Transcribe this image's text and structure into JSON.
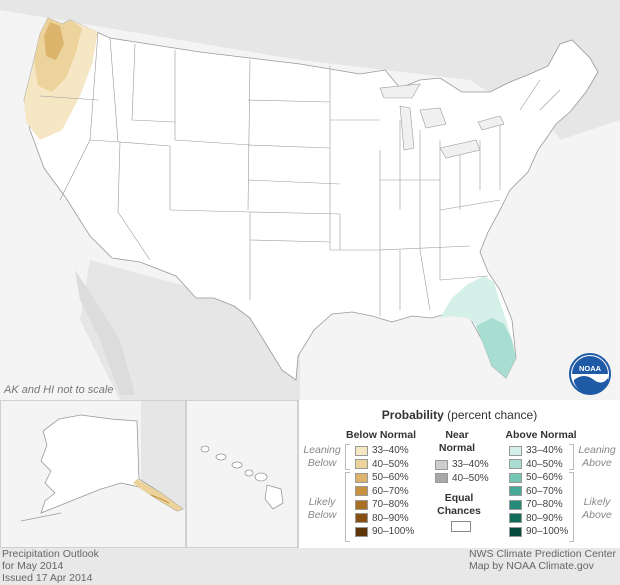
{
  "map": {
    "scale_note": "AK and HI not to scale"
  },
  "legend": {
    "title_bold": "Probability",
    "title_rest": "(percent chance)",
    "below_head": "Below Normal",
    "near_head": "Near Normal",
    "above_head": "Above Normal",
    "leaning_below": "Leaning Below",
    "likely_below": "Likely Below",
    "leaning_above": "Leaning Above",
    "likely_above": "Likely Above",
    "equal_head": "Equal Chances",
    "below_rows": [
      {
        "label": "33–40%",
        "color": "#f5e6c4"
      },
      {
        "label": "40–50%",
        "color": "#ecd39b"
      },
      {
        "label": "50–60%",
        "color": "#dcb46b"
      },
      {
        "label": "60–70%",
        "color": "#c99240"
      },
      {
        "label": "70–80%",
        "color": "#a96f22"
      },
      {
        "label": "80–90%",
        "color": "#855012"
      },
      {
        "label": "90–100%",
        "color": "#5c3508"
      }
    ],
    "near_rows": [
      {
        "label": "33–40%",
        "color": "#cdcdcd"
      },
      {
        "label": "40–50%",
        "color": "#a8a8a8"
      }
    ],
    "above_rows": [
      {
        "label": "33–40%",
        "color": "#d5efe9"
      },
      {
        "label": "40–50%",
        "color": "#a8ded2"
      },
      {
        "label": "50–60%",
        "color": "#74c6b4"
      },
      {
        "label": "60–70%",
        "color": "#46a996"
      },
      {
        "label": "70–80%",
        "color": "#248a77"
      },
      {
        "label": "80–90%",
        "color": "#106b5a"
      },
      {
        "label": "90–100%",
        "color": "#044b3d"
      }
    ]
  },
  "footer": {
    "left_line1": "Precipitation Outlook",
    "left_line2": "for May 2014",
    "left_line3": "Issued 17 Apr 2014",
    "right_line1": "NWS Climate Prediction Center",
    "right_line2": "Map by NOAA Climate.gov"
  },
  "logo": {
    "text": "NOAA",
    "color": "#1f5aa6"
  }
}
